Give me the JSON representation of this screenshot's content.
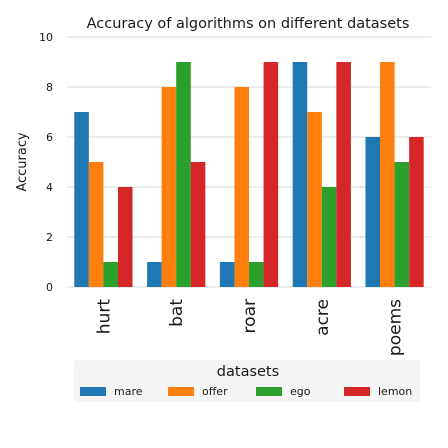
{
  "chart_data": {
    "type": "bar",
    "title": "Accuracy of algorithms on different datasets",
    "xlabel": "",
    "ylabel": "Accuracy",
    "ylim": [
      0,
      10
    ],
    "yticks": [
      0,
      2,
      4,
      6,
      8,
      10
    ],
    "categories": [
      "hurt",
      "bat",
      "roar",
      "acre",
      "poems"
    ],
    "series": [
      {
        "name": "mare",
        "color": "#1f77b4",
        "values": [
          7,
          1,
          1,
          9,
          6
        ]
      },
      {
        "name": "offer",
        "color": "#ff7f0e",
        "values": [
          5,
          8,
          8,
          7,
          9
        ]
      },
      {
        "name": "ego",
        "color": "#2ca02c",
        "values": [
          1,
          9,
          1,
          4,
          5
        ]
      },
      {
        "name": "lemon",
        "color": "#d62728",
        "values": [
          4,
          5,
          9,
          9,
          6
        ]
      }
    ],
    "legend": {
      "title": "datasets",
      "position": "bottom"
    },
    "grid": true
  }
}
